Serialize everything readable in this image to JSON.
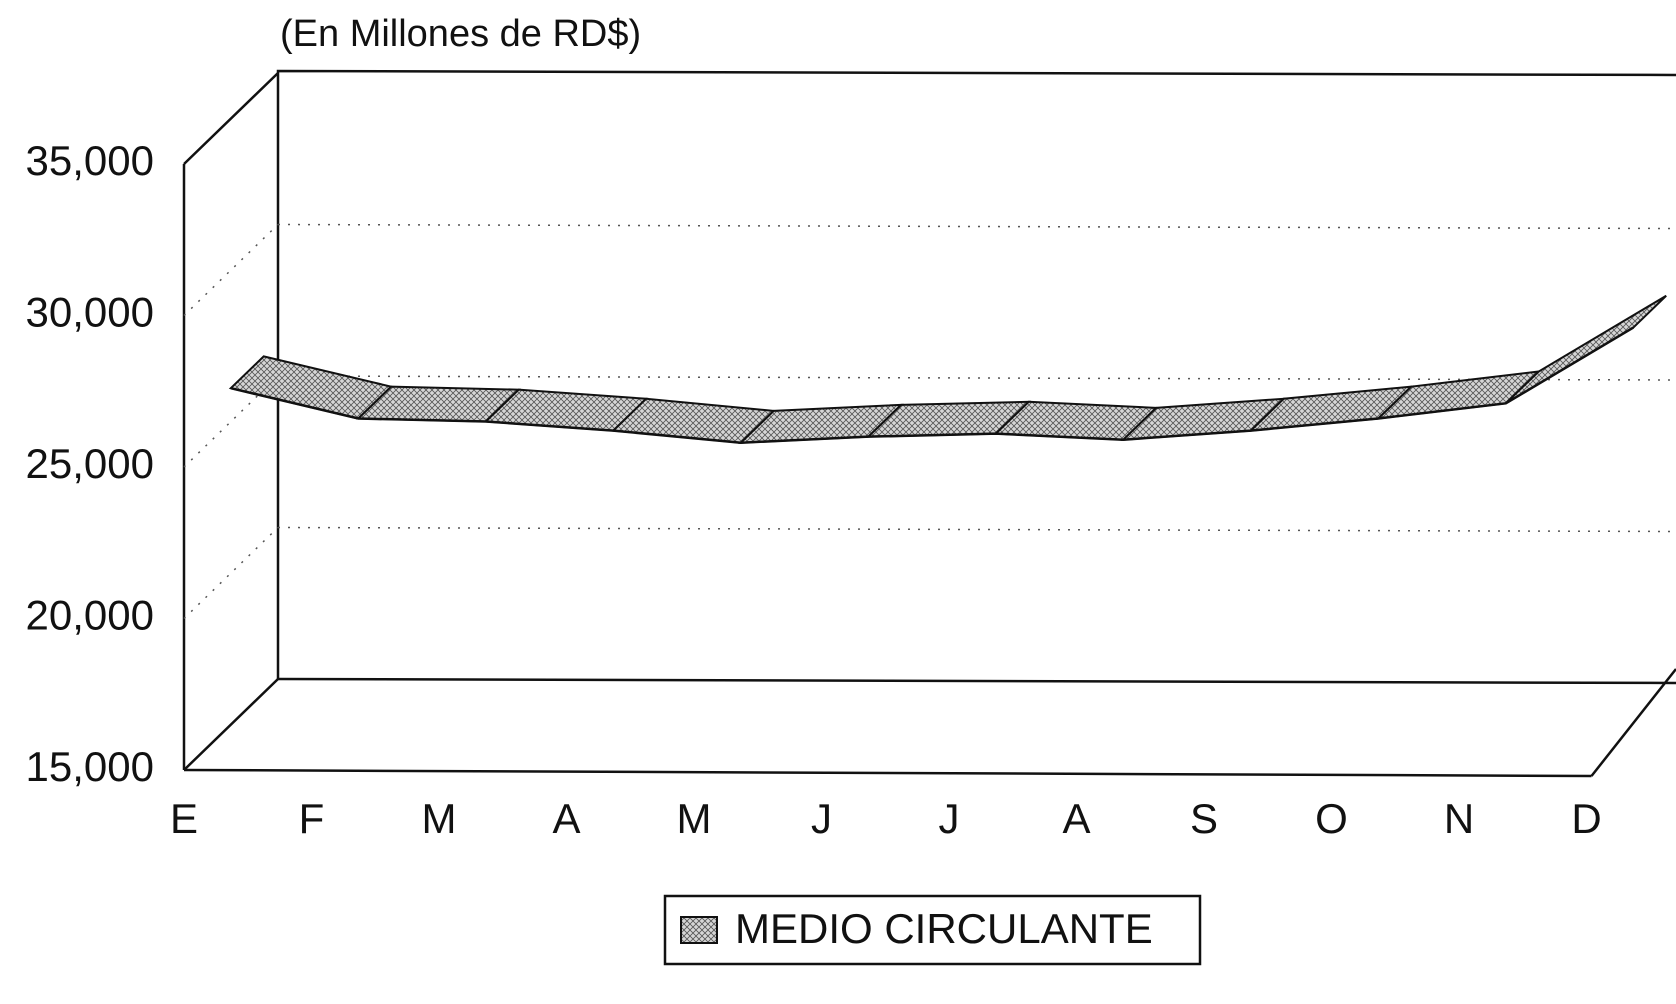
{
  "chart_data": {
    "type": "line",
    "title": "(En Millones de RD$)",
    "categories": [
      "E",
      "F",
      "M",
      "A",
      "M",
      "J",
      "J",
      "A",
      "S",
      "O",
      "N",
      "D"
    ],
    "series": [
      {
        "name": "MEDIO CIRCULANTE",
        "color": "#bdbdbd",
        "values": [
          27000,
          26000,
          25900,
          25600,
          25200,
          25400,
          25500,
          25300,
          25600,
          26000,
          26500,
          29000
        ]
      }
    ],
    "ylim": [
      15000,
      35000
    ],
    "yticks": [
      {
        "value": 15000,
        "label": "15,000"
      },
      {
        "value": 20000,
        "label": "20,000"
      },
      {
        "value": 25000,
        "label": "25,000"
      },
      {
        "value": 30000,
        "label": "30,000"
      },
      {
        "value": 35000,
        "label": "35,000"
      }
    ],
    "grid": true,
    "legend": "bottom"
  }
}
